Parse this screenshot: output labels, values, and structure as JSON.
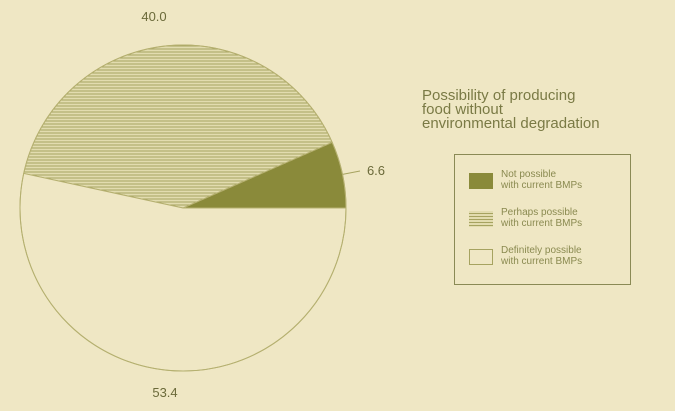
{
  "chart_data": {
    "type": "pie",
    "title": [
      "Possibility of producing",
      "food without",
      "environmental degradation"
    ],
    "slices": [
      {
        "name": [
          "Not possible",
          "with current BMPs"
        ],
        "value": 6.6,
        "label": "6.6",
        "color": "#8a8a3a",
        "pattern": "solid"
      },
      {
        "name": [
          "Perhaps possible",
          "with current BMPs"
        ],
        "value": 40.0,
        "label": "40.0",
        "color": "#b5b36a",
        "pattern": "hatched"
      },
      {
        "name": [
          "Definitely possible",
          "with current BMPs"
        ],
        "value": 53.4,
        "label": "53.4",
        "color": "#efe7c4",
        "pattern": "empty"
      }
    ],
    "legend_position": "right"
  }
}
